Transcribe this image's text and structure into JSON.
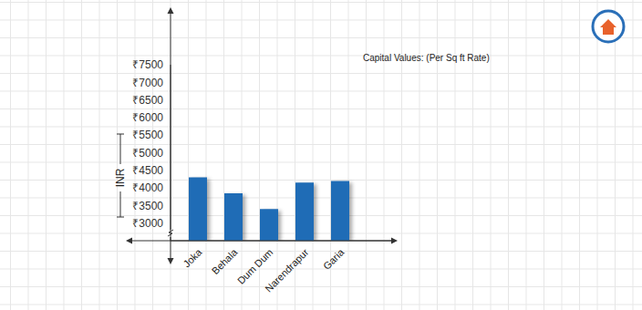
{
  "chart_data": {
    "type": "bar",
    "title": "Capital Values: (Per Sq ft Rate)",
    "y_label": "INR",
    "categories": [
      "Joka",
      "Behala",
      "Dum Dum",
      "Narendrapur",
      "Garia"
    ],
    "values": [
      4300,
      3850,
      3400,
      4150,
      4200
    ],
    "color": "#1f6cb6",
    "ylim": [
      2500,
      7500
    ],
    "yticks": [
      {
        "value": 3000,
        "label": "₹3000"
      },
      {
        "value": 3500,
        "label": "₹3500"
      },
      {
        "value": 4000,
        "label": "₹4000"
      },
      {
        "value": 4500,
        "label": "₹4500"
      },
      {
        "value": 5000,
        "label": "₹5000"
      },
      {
        "value": 5500,
        "label": "₹5500"
      },
      {
        "value": 6000,
        "label": "₹6000"
      },
      {
        "value": 6500,
        "label": "₹6500"
      },
      {
        "value": 7000,
        "label": "₹7000"
      },
      {
        "value": 7500,
        "label": "₹7500"
      }
    ],
    "grid": true
  }
}
